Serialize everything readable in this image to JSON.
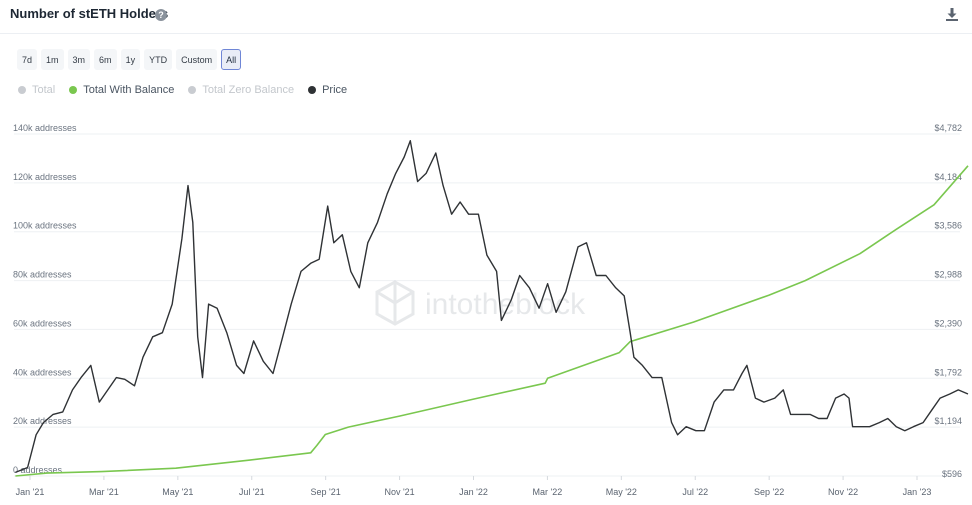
{
  "header": {
    "title": "Number of stETH Holders",
    "help_icon": "question-circle-icon",
    "download_icon": "download-icon"
  },
  "ranges": [
    {
      "label": "7d",
      "active": false
    },
    {
      "label": "1m",
      "active": false
    },
    {
      "label": "3m",
      "active": false
    },
    {
      "label": "6m",
      "active": false
    },
    {
      "label": "1y",
      "active": false
    },
    {
      "label": "YTD",
      "active": false
    },
    {
      "label": "Custom",
      "active": false
    },
    {
      "label": "All",
      "active": true
    }
  ],
  "legend": [
    {
      "label": "Total",
      "color": "#c9ccd1",
      "enabled": false
    },
    {
      "label": "Total With Balance",
      "color": "#7ac74f",
      "enabled": true
    },
    {
      "label": "Total Zero Balance",
      "color": "#c9ccd1",
      "enabled": false
    },
    {
      "label": "Price",
      "color": "#2f3235",
      "enabled": true
    }
  ],
  "watermark": "intotheblock",
  "chart_data": {
    "type": "line",
    "x_ticks": [
      "Jan '21",
      "Mar '21",
      "May '21",
      "Jul '21",
      "Sep '21",
      "Nov '21",
      "Jan '22",
      "Mar '22",
      "May '22",
      "Jul '22",
      "Sep '22",
      "Nov '22",
      "Jan '23"
    ],
    "y_left_ticks": [
      "0 addresses",
      "20k addresses",
      "40k addresses",
      "60k addresses",
      "80k addresses",
      "100k addresses",
      "120k addresses",
      "140k addresses"
    ],
    "y_left_range": [
      0,
      140000
    ],
    "y_right_ticks": [
      "$596",
      "$1,194",
      "$1,792",
      "$2,390",
      "$2,988",
      "$3,586",
      "$4,184",
      "$4,782"
    ],
    "y_right_range": [
      596,
      4782
    ],
    "grid": true,
    "series": [
      {
        "name": "Total With Balance",
        "axis": "left",
        "color": "#7ac74f",
        "x": [
          "2020-12-20",
          "2021-01-15",
          "2021-03-01",
          "2021-05-01",
          "2021-07-01",
          "2021-08-20",
          "2021-08-25",
          "2021-09-01",
          "2021-09-20",
          "2021-11-01",
          "2022-01-01",
          "2022-03-01",
          "2022-03-03",
          "2022-05-01",
          "2022-05-10",
          "2022-07-01",
          "2022-09-01",
          "2022-10-01",
          "2022-11-15",
          "2022-12-15",
          "2023-01-15",
          "2023-02-12"
        ],
        "y": [
          0,
          1200,
          1800,
          3200,
          6500,
          9500,
          12500,
          17000,
          20000,
          24500,
          31500,
          38000,
          40000,
          50500,
          55000,
          63000,
          74000,
          80000,
          91000,
          101000,
          111000,
          127000
        ]
      },
      {
        "name": "Price",
        "axis": "right",
        "color": "#2f3235",
        "x": [
          "2020-12-20",
          "2020-12-30",
          "2021-01-06",
          "2021-01-12",
          "2021-01-20",
          "2021-01-28",
          "2021-02-05",
          "2021-02-12",
          "2021-02-20",
          "2021-02-27",
          "2021-03-06",
          "2021-03-13",
          "2021-03-20",
          "2021-03-28",
          "2021-04-04",
          "2021-04-12",
          "2021-04-20",
          "2021-04-28",
          "2021-05-06",
          "2021-05-11",
          "2021-05-15",
          "2021-05-19",
          "2021-05-23",
          "2021-05-28",
          "2021-06-04",
          "2021-06-12",
          "2021-06-20",
          "2021-06-26",
          "2021-07-04",
          "2021-07-12",
          "2021-07-20",
          "2021-07-28",
          "2021-08-04",
          "2021-08-12",
          "2021-08-20",
          "2021-08-27",
          "2021-09-03",
          "2021-09-08",
          "2021-09-15",
          "2021-09-22",
          "2021-09-29",
          "2021-10-06",
          "2021-10-14",
          "2021-10-22",
          "2021-10-29",
          "2021-11-05",
          "2021-11-10",
          "2021-11-16",
          "2021-11-23",
          "2021-12-01",
          "2021-12-07",
          "2021-12-14",
          "2021-12-21",
          "2021-12-28",
          "2022-01-05",
          "2022-01-12",
          "2022-01-20",
          "2022-01-24",
          "2022-02-01",
          "2022-02-08",
          "2022-02-16",
          "2022-02-24",
          "2022-03-03",
          "2022-03-10",
          "2022-03-18",
          "2022-03-28",
          "2022-04-04",
          "2022-04-12",
          "2022-04-20",
          "2022-04-28",
          "2022-05-05",
          "2022-05-10",
          "2022-05-13",
          "2022-05-20",
          "2022-05-28",
          "2022-06-05",
          "2022-06-13",
          "2022-06-18",
          "2022-06-25",
          "2022-07-03",
          "2022-07-10",
          "2022-07-18",
          "2022-07-26",
          "2022-08-03",
          "2022-08-10",
          "2022-08-14",
          "2022-08-21",
          "2022-08-28",
          "2022-09-06",
          "2022-09-13",
          "2022-09-19",
          "2022-09-27",
          "2022-10-05",
          "2022-10-12",
          "2022-10-19",
          "2022-10-26",
          "2022-11-02",
          "2022-11-06",
          "2022-11-09",
          "2022-11-16",
          "2022-11-23",
          "2022-12-01",
          "2022-12-08",
          "2022-12-15",
          "2022-12-22",
          "2022-12-29",
          "2023-01-06",
          "2023-01-13",
          "2023-01-20",
          "2023-01-28",
          "2023-02-04",
          "2023-02-12"
        ],
        "y": [
          640,
          700,
          1100,
          1250,
          1350,
          1380,
          1650,
          1800,
          1950,
          1500,
          1650,
          1800,
          1780,
          1700,
          2050,
          2300,
          2350,
          2700,
          3500,
          4150,
          3700,
          2300,
          1800,
          2700,
          2650,
          2350,
          1950,
          1850,
          2250,
          2000,
          1850,
          2300,
          2700,
          3100,
          3200,
          3250,
          3900,
          3450,
          3550,
          3100,
          2900,
          3450,
          3700,
          4050,
          4300,
          4500,
          4700,
          4200,
          4300,
          4550,
          4150,
          3800,
          3950,
          3800,
          3800,
          3300,
          3100,
          2500,
          2750,
          3050,
          2900,
          2650,
          2950,
          2600,
          2850,
          3400,
          3450,
          3050,
          3050,
          2900,
          2800,
          2350,
          2050,
          1950,
          1800,
          1800,
          1250,
          1100,
          1200,
          1150,
          1150,
          1500,
          1650,
          1650,
          1850,
          1950,
          1550,
          1500,
          1550,
          1650,
          1350,
          1350,
          1350,
          1300,
          1300,
          1550,
          1600,
          1550,
          1200,
          1200,
          1200,
          1250,
          1300,
          1200,
          1150,
          1200,
          1250,
          1400,
          1550,
          1600,
          1650,
          1600
        ]
      }
    ]
  }
}
